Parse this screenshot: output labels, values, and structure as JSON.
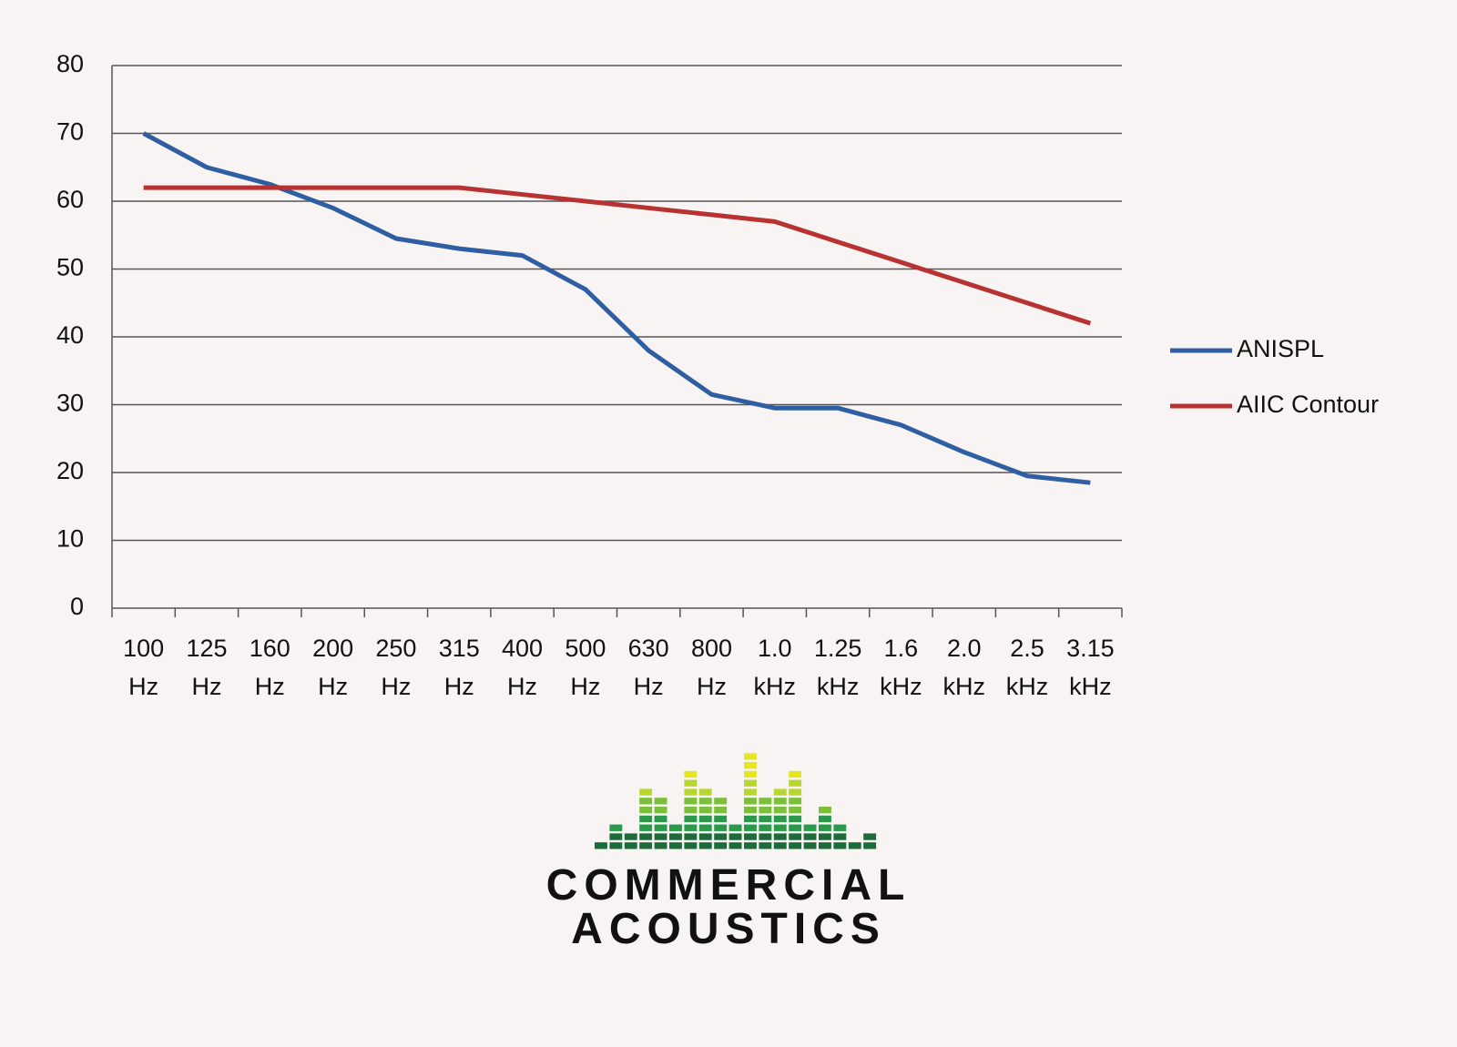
{
  "chart_data": {
    "type": "line",
    "categories": [
      "100 Hz",
      "125 Hz",
      "160 Hz",
      "200 Hz",
      "250 Hz",
      "315 Hz",
      "400 Hz",
      "500 Hz",
      "630 Hz",
      "800 Hz",
      "1.0 kHz",
      "1.25 kHz",
      "1.6 kHz",
      "2.0 kHz",
      "2.5 kHz",
      "3.15 kHz"
    ],
    "series": [
      {
        "name": "ANISPL",
        "color": "#2f5ea3",
        "values": [
          70,
          65,
          62.5,
          59,
          54.5,
          53,
          52,
          47,
          38,
          31.5,
          29.5,
          29.5,
          27,
          23,
          19.5,
          18.5
        ]
      },
      {
        "name": "AIIC Contour",
        "color": "#b83232",
        "values": [
          62,
          62,
          62,
          62,
          62,
          62,
          61,
          60,
          59,
          58,
          57,
          54,
          51,
          48,
          45,
          42
        ]
      }
    ],
    "ylim": [
      0,
      80
    ],
    "yticks": [
      0,
      10,
      20,
      30,
      40,
      50,
      60,
      70,
      80
    ],
    "grid": true,
    "legend": "right"
  },
  "logo": {
    "lines": [
      "COMMERCIAL",
      "ACOUSTICS"
    ]
  }
}
